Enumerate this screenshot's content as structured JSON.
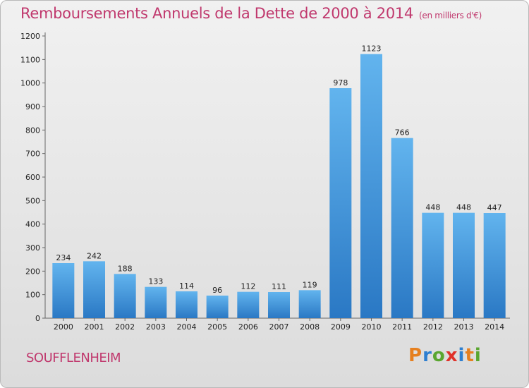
{
  "chart_data": {
    "type": "bar",
    "title": "Remboursements Annuels de la Dette de 2000 à 2014",
    "subtitle": "(en milliers d'€)",
    "categories": [
      "2000",
      "2001",
      "2002",
      "2003",
      "2004",
      "2005",
      "2006",
      "2007",
      "2008",
      "2009",
      "2010",
      "2011",
      "2012",
      "2013",
      "2014"
    ],
    "values": [
      234,
      242,
      188,
      133,
      114,
      96,
      112,
      111,
      119,
      978,
      1123,
      766,
      448,
      448,
      447
    ],
    "ylim": [
      0,
      1200
    ],
    "yticks": [
      0,
      100,
      200,
      300,
      400,
      500,
      600,
      700,
      800,
      900,
      1000,
      1100,
      1200
    ],
    "grid": false,
    "bar_color": "#3d8fd8"
  },
  "footer": {
    "commune": "SOUFFLENHEIM",
    "brand": "Proxiti"
  },
  "colors": {
    "accent": "#c0386d",
    "brand_letters": [
      "#e6801f",
      "#2e7fd0",
      "#5aa630",
      "#e0322a",
      "#2e7fd0",
      "#e6801f",
      "#5aa630"
    ]
  }
}
